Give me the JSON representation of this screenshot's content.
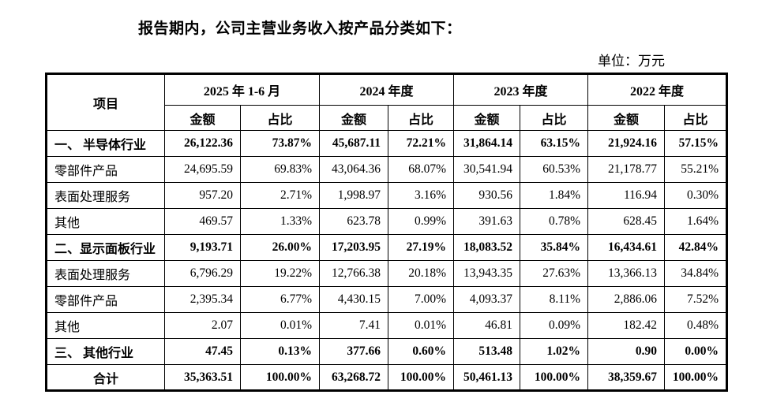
{
  "page": {
    "intro": "报告期内，公司主营业务收入按产品分类如下：",
    "unit_label": "单位：万元"
  },
  "colors": {
    "text": "#000000",
    "border": "#000000",
    "background": "#ffffff"
  },
  "table": {
    "item_header": "项目",
    "periods": [
      "2025 年 1-6 月",
      "2024 年度",
      "2023 年度",
      "2022 年度"
    ],
    "sub_headers": {
      "amount": "金额",
      "ratio": "占比"
    },
    "rows": [
      {
        "label": "一、 半导体行业",
        "bold": true,
        "total": false,
        "cells": [
          "26,122.36",
          "73.87%",
          "45,687.11",
          "72.21%",
          "31,864.14",
          "63.15%",
          "21,924.16",
          "57.15%"
        ]
      },
      {
        "label": "零部件产品",
        "bold": false,
        "total": false,
        "cells": [
          "24,695.59",
          "69.83%",
          "43,064.36",
          "68.07%",
          "30,541.94",
          "60.53%",
          "21,178.77",
          "55.21%"
        ]
      },
      {
        "label": "表面处理服务",
        "bold": false,
        "total": false,
        "cells": [
          "957.20",
          "2.71%",
          "1,998.97",
          "3.16%",
          "930.56",
          "1.84%",
          "116.94",
          "0.30%"
        ]
      },
      {
        "label": "其他",
        "bold": false,
        "total": false,
        "cells": [
          "469.57",
          "1.33%",
          "623.78",
          "0.99%",
          "391.63",
          "0.78%",
          "628.45",
          "1.64%"
        ]
      },
      {
        "label": "二、显示面板行业",
        "bold": true,
        "total": false,
        "cells": [
          "9,193.71",
          "26.00%",
          "17,203.95",
          "27.19%",
          "18,083.52",
          "35.84%",
          "16,434.61",
          "42.84%"
        ]
      },
      {
        "label": "表面处理服务",
        "bold": false,
        "total": false,
        "cells": [
          "6,796.29",
          "19.22%",
          "12,766.38",
          "20.18%",
          "13,943.35",
          "27.63%",
          "13,366.13",
          "34.84%"
        ]
      },
      {
        "label": "零部件产品",
        "bold": false,
        "total": false,
        "cells": [
          "2,395.34",
          "6.77%",
          "4,430.15",
          "7.00%",
          "4,093.37",
          "8.11%",
          "2,886.06",
          "7.52%"
        ]
      },
      {
        "label": "其他",
        "bold": false,
        "total": false,
        "cells": [
          "2.07",
          "0.01%",
          "7.41",
          "0.01%",
          "46.81",
          "0.09%",
          "182.42",
          "0.48%"
        ]
      },
      {
        "label": "三、 其他行业",
        "bold": true,
        "total": false,
        "cells": [
          "47.45",
          "0.13%",
          "377.66",
          "0.60%",
          "513.48",
          "1.02%",
          "0.90",
          "0.00%"
        ]
      },
      {
        "label": "合计",
        "bold": true,
        "total": true,
        "cells": [
          "35,363.51",
          "100.00%",
          "63,268.72",
          "100.00%",
          "50,461.13",
          "100.00%",
          "38,359.67",
          "100.00%"
        ]
      }
    ]
  }
}
